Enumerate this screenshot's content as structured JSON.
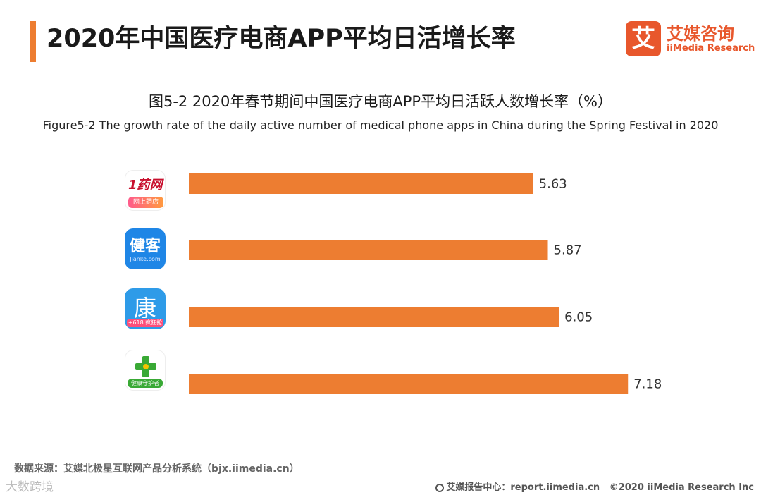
{
  "header": {
    "title": "2020年中国医疗电商APP平均日活增长率",
    "brand_cn": "艾媒咨询",
    "brand_en": "iiMedia Research",
    "brand_logo_char": "艾",
    "accent_color": "#ED7D31"
  },
  "apps": [
    {
      "icon": "1yaowang-app-icon",
      "text": "1药网",
      "badge": "网上药店"
    },
    {
      "icon": "jianke-app-icon",
      "text": "健客",
      "badge": "Jianke.com"
    },
    {
      "icon": "kang-app-icon",
      "text": "康",
      "badge": "+618 疯狂抢"
    },
    {
      "icon": "health-guardian-app-icon",
      "badge": "健康守护者"
    }
  ],
  "chart_data": {
    "type": "bar",
    "orientation": "horizontal",
    "title": "图5-2 2020年春节期间中国医疗电商APP平均日活跃人数增长率（%）",
    "subtitle": "Figure5-2 The growth rate of the daily active number of medical phone apps in China during the Spring Festival in 2020",
    "categories": [
      "1药网",
      "健客",
      "康",
      "健康守护者"
    ],
    "values": [
      5.63,
      5.87,
      6.05,
      7.18
    ],
    "data_labels": [
      "5.63",
      "5.87",
      "6.05",
      "7.18"
    ],
    "xlim": [
      0,
      8
    ],
    "bar_color": "#ED7D31",
    "grid": false,
    "legend": "none"
  },
  "footer": {
    "source": "数据来源：艾媒北极星互联网产品分析系统（bjx.iimedia.cn）",
    "report_center": "艾媒报告中心：report.iimedia.cn",
    "copyright": "©2020  iiMedia Research  Inc",
    "watermark": "大数跨境"
  }
}
